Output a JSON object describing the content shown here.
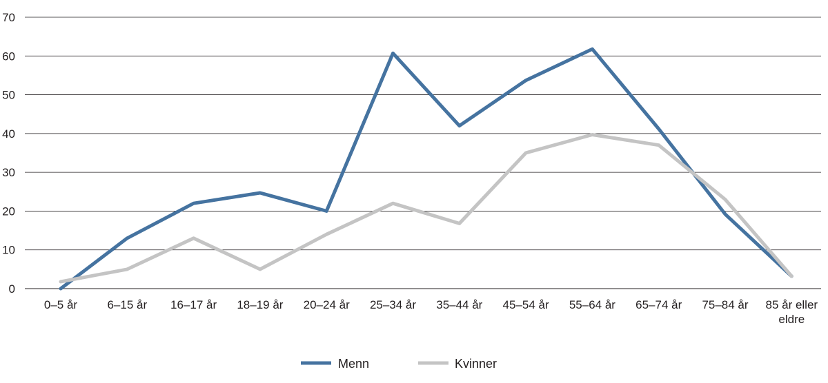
{
  "chart_data": {
    "type": "line",
    "title": "",
    "xlabel": "",
    "ylabel": "",
    "categories": [
      [
        "0–5 år"
      ],
      [
        "6–15 år"
      ],
      [
        "16–17 år"
      ],
      [
        "18–19 år"
      ],
      [
        "20–24 år"
      ],
      [
        "25–34 år"
      ],
      [
        "35–44 år"
      ],
      [
        "45–54 år"
      ],
      [
        "55–64 år"
      ],
      [
        "65–74 år"
      ],
      [
        "75–84 år"
      ],
      [
        "85 år eller",
        "eldre"
      ]
    ],
    "ylim": [
      0,
      70
    ],
    "yticks": [
      0,
      10,
      20,
      30,
      40,
      50,
      60,
      70
    ],
    "grid": true,
    "legend_position": "bottom",
    "series": [
      {
        "name": "Menn",
        "color": "#4573a0",
        "values": [
          0,
          13,
          22,
          24.7,
          20,
          60.7,
          42,
          53.7,
          61.8,
          41.2,
          19.2,
          3.2
        ]
      },
      {
        "name": "Kvinner",
        "color": "#c4c4c4",
        "values": [
          1.8,
          5,
          13,
          5,
          14,
          22,
          16.8,
          35,
          39.7,
          37,
          23,
          3.2
        ]
      }
    ]
  }
}
